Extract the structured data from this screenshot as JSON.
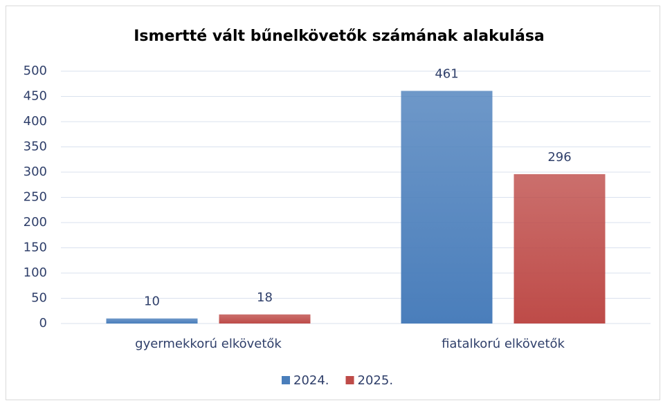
{
  "chart_data": {
    "type": "bar",
    "title": "Ismertté vált bűnelkövetők számának alakulása",
    "categories": [
      "gyermekkorú elkövetők",
      "fiatalkorú elkövetők"
    ],
    "series": [
      {
        "name": "2024.",
        "color": "#4a7ebb",
        "values": [
          10,
          461
        ]
      },
      {
        "name": "2025.",
        "color": "#be4b48",
        "values": [
          18,
          296
        ]
      }
    ],
    "ylim": [
      0,
      500
    ],
    "yticks": [
      0,
      50,
      100,
      150,
      200,
      250,
      300,
      350,
      400,
      450,
      500
    ],
    "grid": true,
    "legend": "bottom"
  }
}
